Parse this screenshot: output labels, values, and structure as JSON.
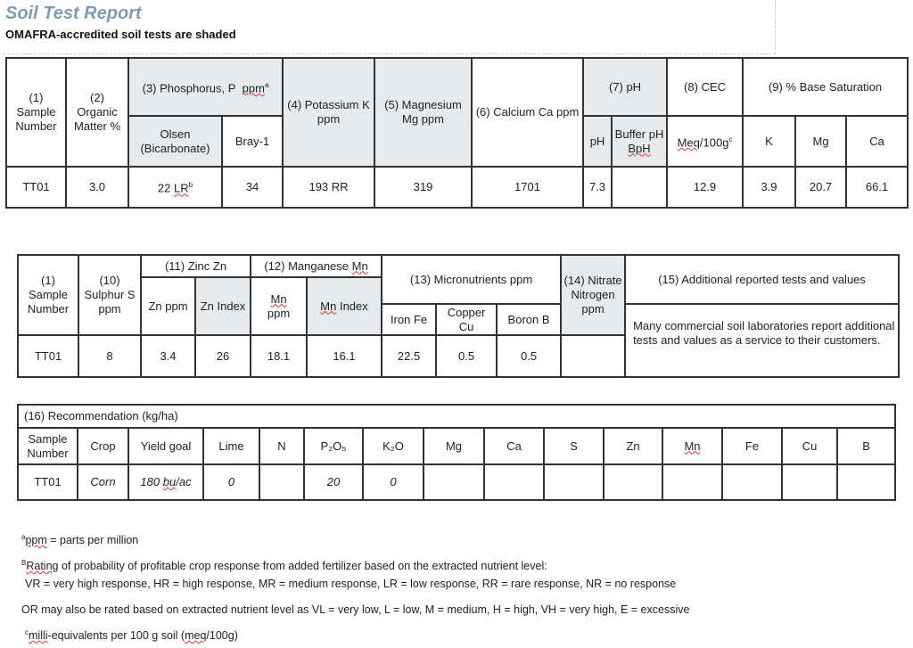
{
  "header": {
    "title": "Soil Test Report",
    "subtitle": "OMAFRA-accredited soil tests are shaded"
  },
  "table1": {
    "h_sample": "(1) Sample Number",
    "h_om": "(2) Organic Matter %",
    "h_p": "(3) Phosphorus, P",
    "h_p_unit": "ppm",
    "h_p_sup": "a",
    "h_olsen": "Olsen (Bicarbonate)",
    "h_bray": "Bray-1",
    "h_k": "(4) Potassium K ppm",
    "h_mg": "(5) Magnesium Mg ppm",
    "h_ca": "(6) Calcium Ca ppm",
    "h_ph": "(7) pH",
    "h_ph_sub": "pH",
    "h_bph": "Buffer pH",
    "h_bph2": "BpH",
    "h_cec": "(8) CEC",
    "h_cec_unit": "Meq",
    "h_cec_unit2": "/100g",
    "h_cec_sup": "c",
    "h_bs": "(9) % Base Saturation",
    "h_bs_k": "K",
    "h_bs_mg": "Mg",
    "h_bs_ca": "Ca",
    "row": {
      "sample": "TT01",
      "om": "3.0",
      "olsen": "22",
      "olsen_rating": "LR",
      "olsen_sup": "b",
      "bray": "34",
      "k": "193 RR",
      "mg": "319",
      "ca": "1701",
      "ph": "7.3",
      "bph": "",
      "cec": "12.9",
      "bs_k": "3.9",
      "bs_mg": "20.7",
      "bs_ca": "66.1"
    }
  },
  "table2": {
    "h_sample": "(1) Sample Number",
    "h_s": "(10) Sulphur S ppm",
    "h_zn": "(11) Zinc Zn",
    "h_znppm": "Zn ppm",
    "h_znidx": "Zn Index",
    "h_mn": "(12) Manganese",
    "h_mn_sym": "Mn",
    "h_mnppm": "ppm",
    "h_mnidx": "Index",
    "h_micro": "(13) Micronutrients  ppm",
    "h_fe": "Iron Fe",
    "h_cu": "Copper Cu",
    "h_b": "Boron B",
    "h_no3": "(14) Nitrate Nitrogen ppm",
    "h_add": "(15) Additional reported tests and values",
    "add_text": "Many commercial soil laboratories report additional tests and values as a service to their customers.",
    "row": {
      "sample": "TT01",
      "s": "8",
      "znppm": "3.4",
      "znidx": "26",
      "mnppm": "18.1",
      "mnidx": "16.1",
      "fe": "22.5",
      "cu": "0.5",
      "b": "0.5",
      "no3": ""
    }
  },
  "table3": {
    "title": "(16)  Recommendation (kg/ha)",
    "headers": [
      "Sample Number",
      "Crop",
      "Yield goal",
      "Lime",
      "N",
      "P₂O₅",
      "K₂O",
      "Mg",
      "Ca",
      "S",
      "Zn",
      "Mn",
      "Fe",
      "Cu",
      "B"
    ],
    "row": {
      "sample": "TT01",
      "crop": "Corn",
      "yield": "180",
      "yield_unit": "bu",
      "yield_unit2": "/ac",
      "lime": "0",
      "n": "",
      "p2o5": "20",
      "k2o": "0",
      "mg": "",
      "ca": "",
      "s": "",
      "zn": "",
      "mn": "",
      "fe": "",
      "cu": "",
      "b": ""
    }
  },
  "notes": {
    "a_sup": "a",
    "a": "ppm",
    "a_rest": " = parts per million",
    "b_sup": "B",
    "b": "Rating",
    "b_rest": " of probability of profitable crop response from added fertilizer based on the extracted nutrient level:",
    "b_line2": "VR = very high response,  HR = high response,  MR = medium response,  LR = low response,  RR = rare response,  NR = no response",
    "or_line": "OR may also be rated based on extracted nutrient level as  VL =  very low, L = low, M = medium, H = high, VH = very high, E = excessive",
    "c_sup": "c",
    "c": "milli",
    "c_rest": "-equivalents per 100 g soil (",
    "c_unit": "meq",
    "c_end": "/100g)"
  },
  "colors": {
    "title": "#7d9db5",
    "shaded": "#e6eaed",
    "border": "#333333"
  }
}
